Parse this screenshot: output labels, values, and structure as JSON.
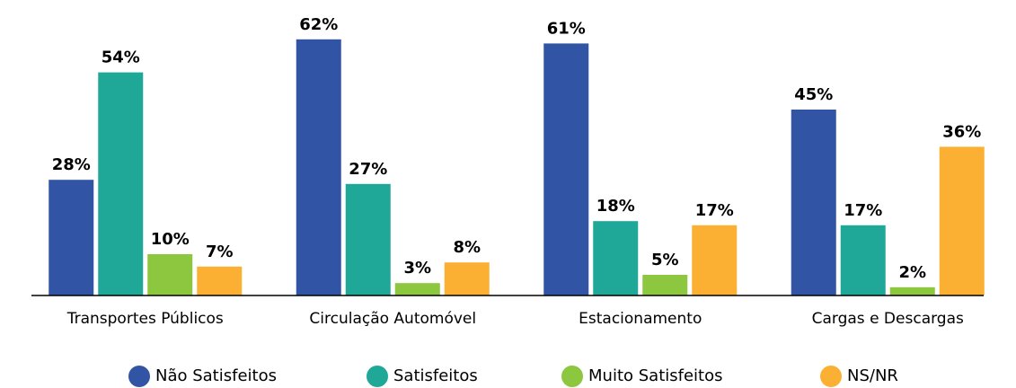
{
  "chart_data": {
    "type": "bar",
    "categories": [
      "Transportes Públicos",
      "Circulação Automóvel",
      "Estacionamento",
      "Cargas e Descargas"
    ],
    "series": [
      {
        "name": "Não Satisfeitos",
        "color": "#3155a4",
        "values": [
          28,
          62,
          61,
          45
        ],
        "value_labels": [
          "28%",
          "62%",
          "61%",
          "45%"
        ]
      },
      {
        "name": "Satisfeitos",
        "color": "#1fa898",
        "values": [
          54,
          27,
          18,
          17
        ],
        "value_labels": [
          "54%",
          "27%",
          "18%",
          "17%"
        ]
      },
      {
        "name": "Muito Satisfeitos",
        "color": "#8dc63f",
        "values": [
          10,
          3,
          5,
          2
        ],
        "value_labels": [
          "10%",
          "3%",
          "5%",
          "2%"
        ]
      },
      {
        "name": "NS/NR",
        "color": "#fbb034",
        "values": [
          7,
          8,
          17,
          36
        ],
        "value_labels": [
          "7%",
          "8%",
          "17%",
          "36%"
        ]
      }
    ],
    "ylim": [
      0,
      65
    ],
    "legend": "bottom"
  }
}
